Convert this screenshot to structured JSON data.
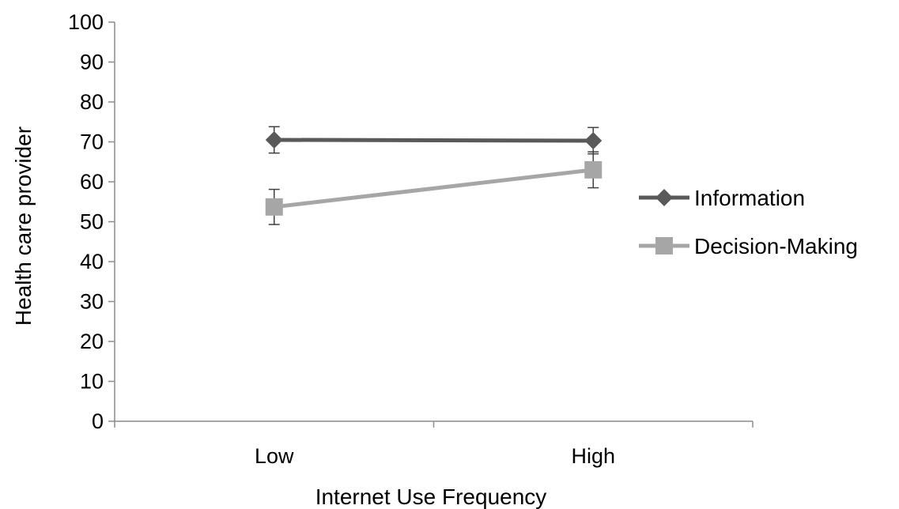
{
  "chart_data": {
    "type": "line",
    "title": "",
    "xlabel": "Internet Use Frequency",
    "ylabel": "Health care provider",
    "categories": [
      "Low",
      "High"
    ],
    "ylim": [
      0,
      100
    ],
    "yticks": [
      0,
      10,
      20,
      30,
      40,
      50,
      60,
      70,
      80,
      90,
      100
    ],
    "grid": false,
    "legend": "right",
    "series": [
      {
        "name": "Information",
        "marker": "diamond",
        "color": "#595959",
        "values": [
          70.5,
          70.3
        ],
        "error_low": [
          67.2,
          67.0
        ],
        "error_high": [
          73.8,
          73.6
        ]
      },
      {
        "name": "Decision-Making",
        "marker": "square",
        "color": "#a6a6a6",
        "values": [
          53.7,
          63.0
        ],
        "error_low": [
          49.3,
          58.5
        ],
        "error_high": [
          58.1,
          67.5
        ]
      }
    ]
  }
}
